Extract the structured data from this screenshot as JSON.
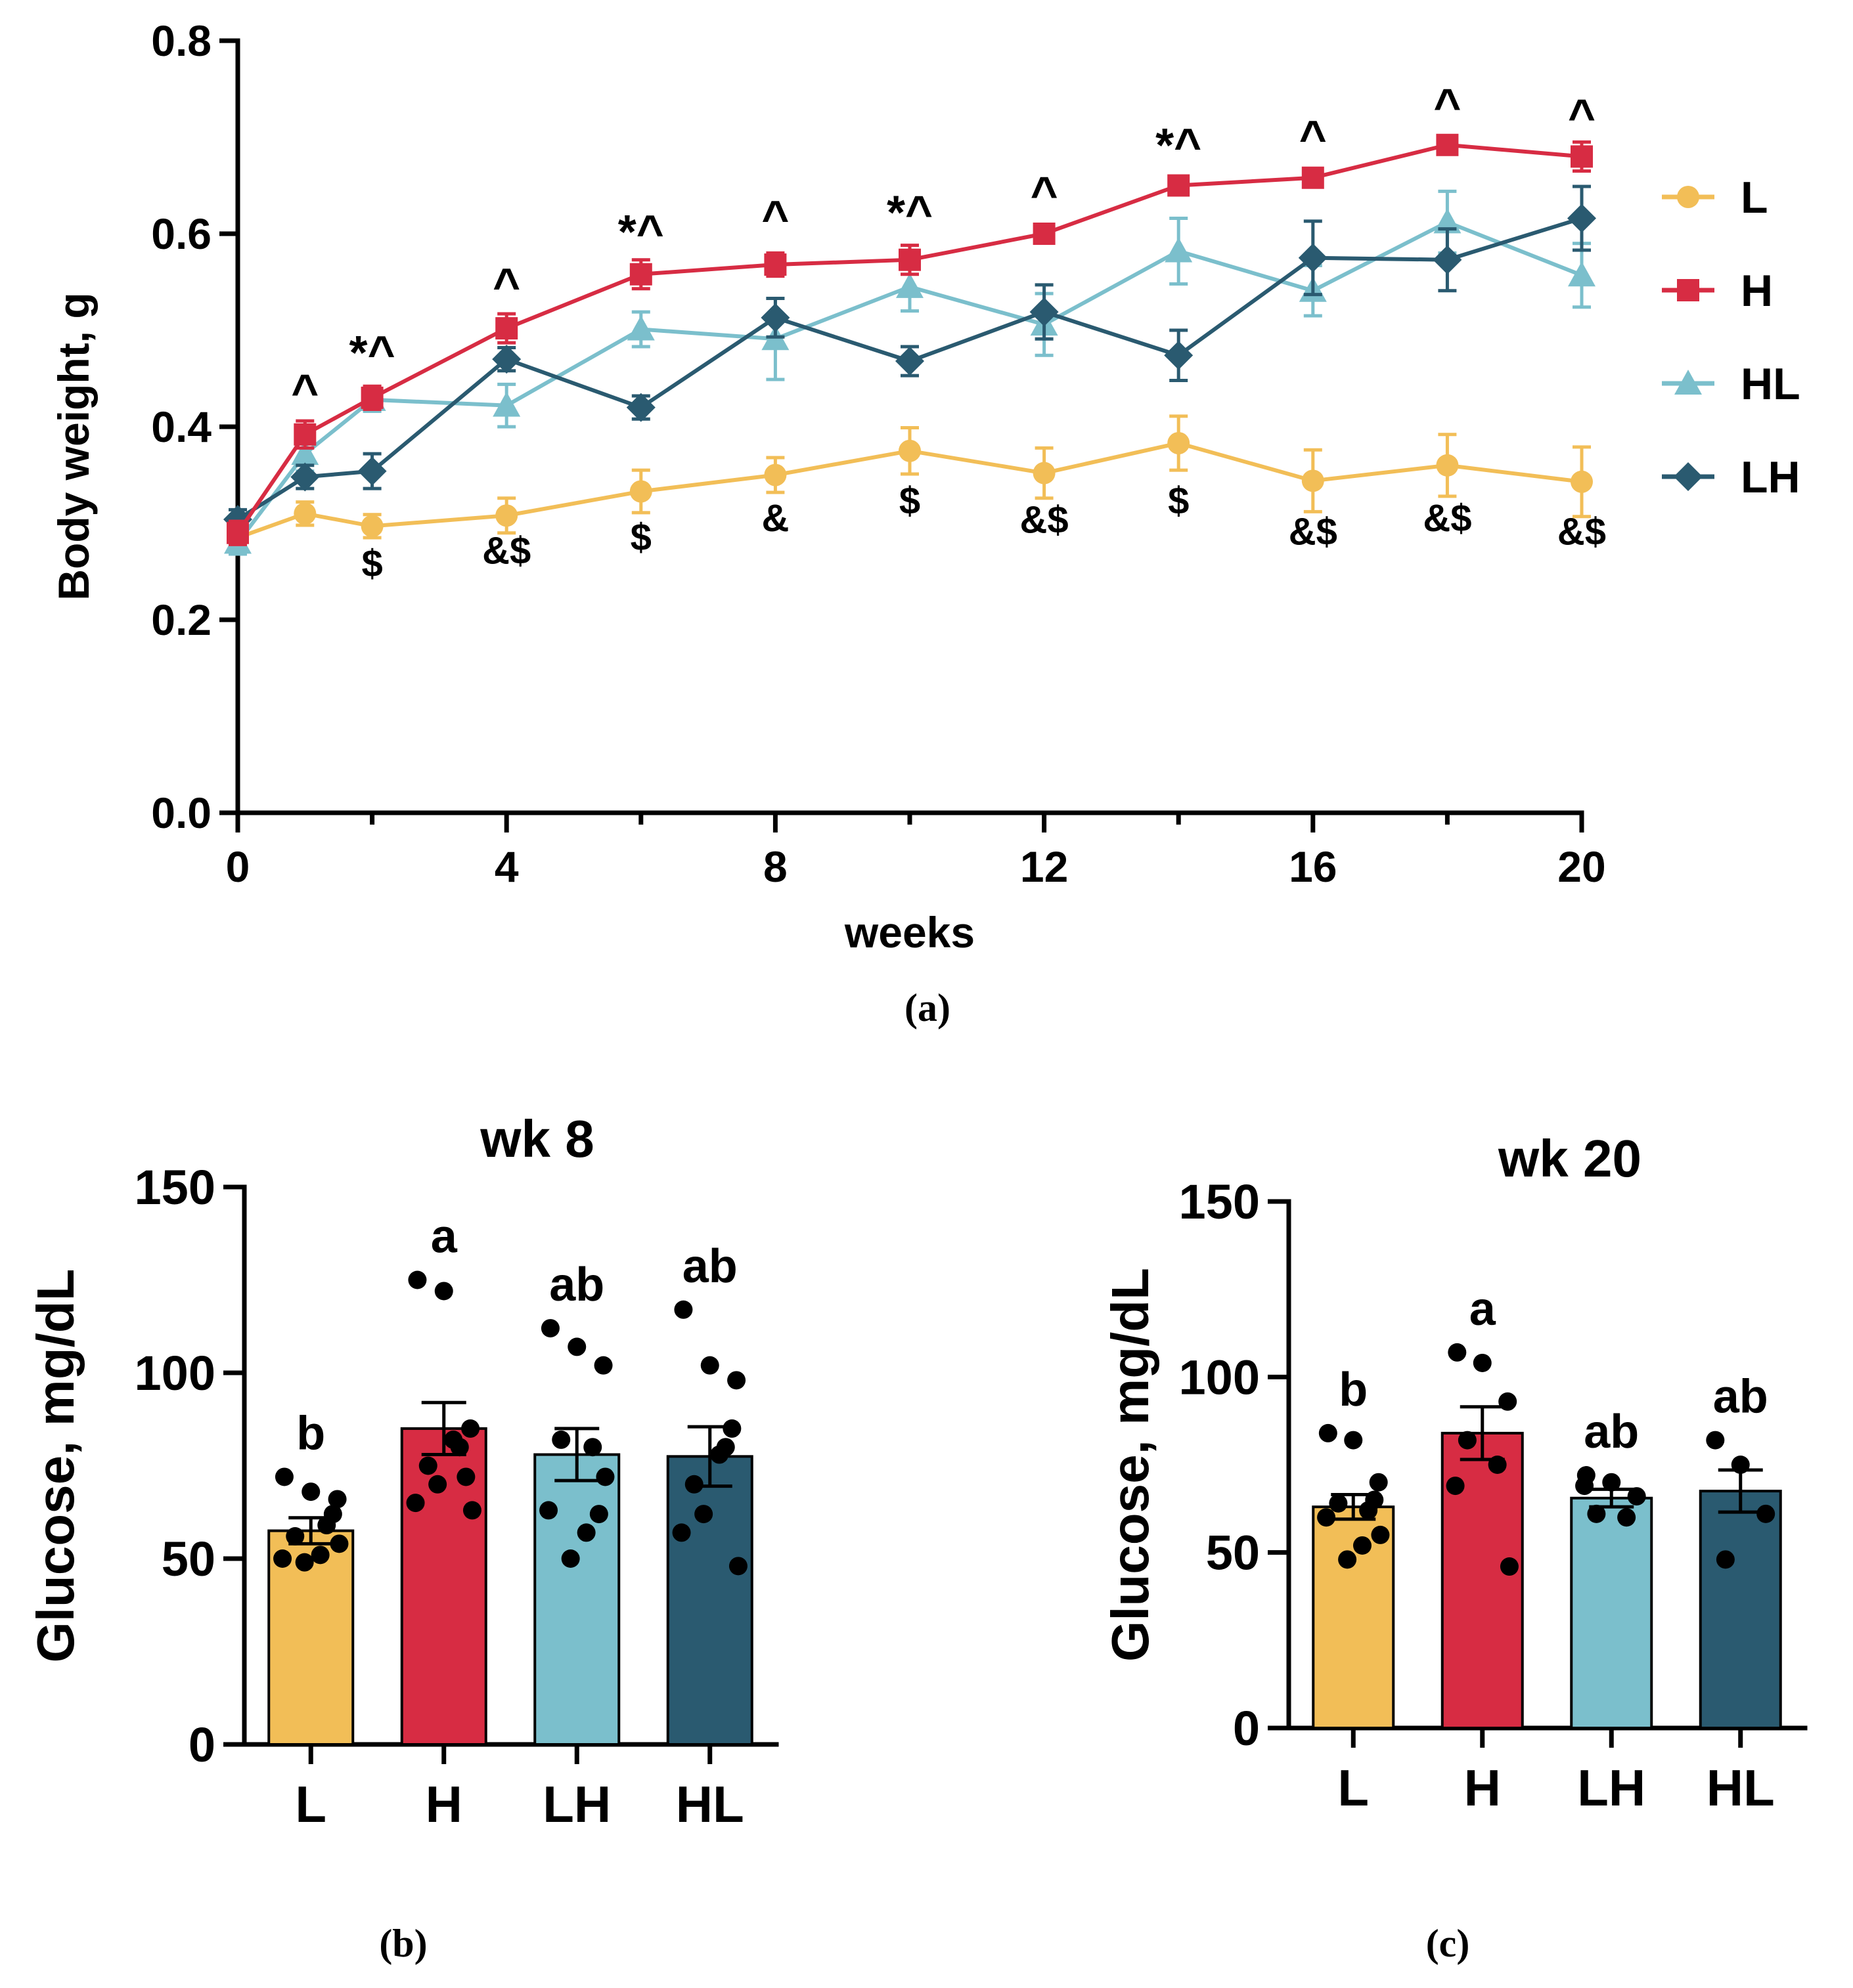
{
  "colors": {
    "L": "#F2BE57",
    "H": "#D72C43",
    "HL": "#7BBFCC",
    "LH": "#2A5A70"
  },
  "chart_data": [
    {
      "id": "panel-a",
      "type": "line",
      "panel_label": "(a)",
      "title": "",
      "xlabel": "weeks",
      "ylabel": "Body weight, g",
      "xlim": [
        0,
        20
      ],
      "ylim": [
        0,
        0.8
      ],
      "xticks": [
        0,
        4,
        8,
        12,
        16,
        20
      ],
      "xtick_labels": [
        "0",
        "4",
        "8",
        "12",
        "16",
        "20"
      ],
      "yticks": [
        0,
        0.2,
        0.4,
        0.6,
        0.8
      ],
      "ytick_labels": [
        "0.0",
        "0.2",
        "0.4",
        "0.6",
        "0.8"
      ],
      "legend_position": "right",
      "series": [
        {
          "name": "L",
          "marker": "circle",
          "x": [
            0,
            1,
            2,
            4,
            6,
            8,
            10,
            12,
            14,
            16,
            18,
            20
          ],
          "y": [
            0.285,
            0.31,
            0.297,
            0.308,
            0.333,
            0.35,
            0.375,
            0.352,
            0.383,
            0.344,
            0.36,
            0.343
          ],
          "err": [
            0.012,
            0.012,
            0.012,
            0.018,
            0.022,
            0.018,
            0.024,
            0.026,
            0.028,
            0.032,
            0.032,
            0.036
          ]
        },
        {
          "name": "H",
          "marker": "square",
          "x": [
            0,
            1,
            2,
            4,
            6,
            8,
            10,
            12,
            14,
            16,
            18,
            20
          ],
          "y": [
            0.29,
            0.392,
            0.43,
            0.502,
            0.558,
            0.568,
            0.573,
            0.6,
            0.65,
            0.658,
            0.692,
            0.68
          ],
          "err": [
            0.012,
            0.014,
            0.012,
            0.015,
            0.015,
            0.012,
            0.015,
            0.009,
            0.009,
            0.009,
            0.009,
            0.015
          ]
        },
        {
          "name": "HL",
          "marker": "triangle",
          "x": [
            0,
            1,
            2,
            4,
            6,
            8,
            10,
            12,
            14,
            16,
            18,
            20
          ],
          "y": [
            0.28,
            0.372,
            0.428,
            0.422,
            0.501,
            0.491,
            0.545,
            0.506,
            0.582,
            0.541,
            0.612,
            0.557
          ],
          "err": [
            0.012,
            0.018,
            0.012,
            0.022,
            0.018,
            0.042,
            0.025,
            0.032,
            0.034,
            0.026,
            0.032,
            0.033
          ]
        },
        {
          "name": "LH",
          "marker": "diamond",
          "x": [
            0,
            1,
            2,
            4,
            6,
            8,
            10,
            12,
            14,
            16,
            18,
            20
          ],
          "y": [
            0.304,
            0.348,
            0.354,
            0.47,
            0.42,
            0.513,
            0.468,
            0.519,
            0.474,
            0.575,
            0.573,
            0.616
          ],
          "err": [
            0.01,
            0.012,
            0.018,
            0.012,
            0.012,
            0.02,
            0.015,
            0.028,
            0.026,
            0.038,
            0.032,
            0.033
          ]
        }
      ],
      "annotations_top": [
        {
          "x": 1,
          "y": 0.42,
          "text": "^"
        },
        {
          "x": 2,
          "y": 0.46,
          "text": "*^"
        },
        {
          "x": 4,
          "y": 0.53,
          "text": "^"
        },
        {
          "x": 6,
          "y": 0.585,
          "text": "*^"
        },
        {
          "x": 8,
          "y": 0.6,
          "text": "^"
        },
        {
          "x": 10,
          "y": 0.605,
          "text": "*^"
        },
        {
          "x": 12,
          "y": 0.625,
          "text": "^"
        },
        {
          "x": 14,
          "y": 0.675,
          "text": "*^"
        },
        {
          "x": 16,
          "y": 0.683,
          "text": "^"
        },
        {
          "x": 18,
          "y": 0.716,
          "text": "^"
        },
        {
          "x": 20,
          "y": 0.705,
          "text": "^"
        }
      ],
      "annotations_bottom": [
        {
          "x": 2,
          "y": 0.245,
          "text": "$"
        },
        {
          "x": 4,
          "y": 0.258,
          "text": "&$"
        },
        {
          "x": 6,
          "y": 0.272,
          "text": "$"
        },
        {
          "x": 8,
          "y": 0.292,
          "text": "&"
        },
        {
          "x": 10,
          "y": 0.31,
          "text": "$"
        },
        {
          "x": 12,
          "y": 0.29,
          "text": "&$"
        },
        {
          "x": 14,
          "y": 0.31,
          "text": "$"
        },
        {
          "x": 16,
          "y": 0.278,
          "text": "&$"
        },
        {
          "x": 18,
          "y": 0.292,
          "text": "&$"
        },
        {
          "x": 20,
          "y": 0.278,
          "text": "&$"
        }
      ]
    },
    {
      "id": "panel-b",
      "type": "bar",
      "panel_label": "(b)",
      "title": "wk 8",
      "xlabel": "",
      "ylabel": "Glucose, mg/dL",
      "ylim": [
        0,
        150
      ],
      "yticks": [
        0,
        50,
        100,
        150
      ],
      "ytick_labels": [
        "0",
        "50",
        "100",
        "150"
      ],
      "categories": [
        "L",
        "H",
        "LH",
        "HL"
      ],
      "values": [
        57.5,
        85,
        78,
        77.5
      ],
      "err": [
        3.5,
        7,
        7,
        8
      ],
      "letters": [
        "b",
        "a",
        "ab",
        "ab"
      ],
      "points": [
        [
          72,
          68,
          66,
          56,
          59,
          50,
          54,
          49,
          51,
          62
        ],
        [
          125,
          122,
          85,
          75,
          80,
          65,
          63,
          70,
          82,
          72
        ],
        [
          112,
          107,
          102,
          82,
          80,
          63,
          72,
          50,
          57,
          62
        ],
        [
          117,
          102,
          98,
          70,
          80,
          57,
          48,
          62,
          78,
          85
        ]
      ]
    },
    {
      "id": "panel-c",
      "type": "bar",
      "panel_label": "(c)",
      "title": "wk 20",
      "xlabel": "",
      "ylabel": "Glucose, mg/dL",
      "ylim": [
        0,
        150
      ],
      "yticks": [
        0,
        50,
        100,
        150
      ],
      "ytick_labels": [
        "0",
        "50",
        "100",
        "150"
      ],
      "categories": [
        "L",
        "H",
        "LH",
        "HL"
      ],
      "values": [
        63,
        84,
        65.5,
        67.5
      ],
      "err": [
        3.5,
        7.5,
        2.5,
        6
      ],
      "letters": [
        "b",
        "a",
        "ab",
        "ab"
      ],
      "points": [
        [
          84,
          82,
          70,
          64,
          62,
          60,
          55,
          48,
          52,
          65
        ],
        [
          107,
          104,
          93,
          82,
          75,
          69,
          46
        ],
        [
          72,
          70,
          66,
          61,
          60,
          69
        ],
        [
          82,
          75,
          61,
          48
        ]
      ]
    }
  ]
}
